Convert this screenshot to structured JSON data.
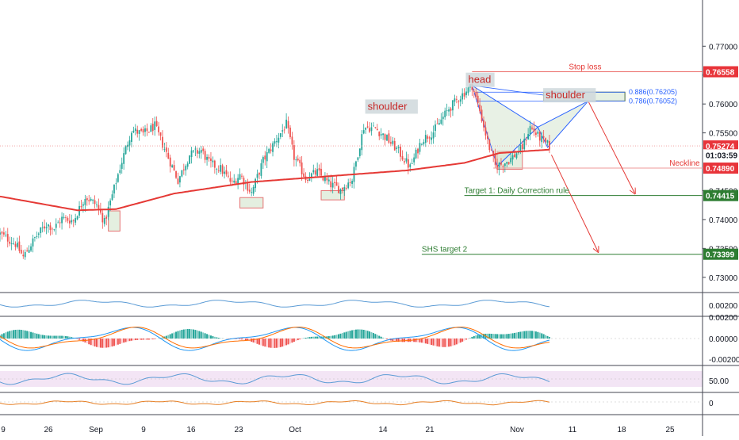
{
  "chart_data": {
    "type": "candlestick",
    "main_panel": {
      "ylim": [
        0.7275,
        0.778
      ],
      "y_ticks": [
        {
          "value": 0.77,
          "label": "0.77000"
        },
        {
          "value": 0.765,
          "label": ""
        },
        {
          "value": 0.76,
          "label": "0.76000"
        },
        {
          "value": 0.755,
          "label": "0.75500"
        },
        {
          "value": 0.745,
          "label": "0.74500"
        },
        {
          "value": 0.74,
          "label": "0.74000"
        },
        {
          "value": 0.735,
          "label": "0.73500"
        },
        {
          "value": 0.73,
          "label": "0.73000"
        }
      ],
      "price_labels": [
        {
          "name": "stop-loss-price",
          "value": 0.76558,
          "label": "0.76558",
          "bg": "#e8343a",
          "fg": "#ffffff"
        },
        {
          "name": "current-price",
          "value": 0.75274,
          "label": "0.75274",
          "bg": "#e8343a",
          "fg": "#ffffff"
        },
        {
          "name": "countdown",
          "value": 0.7512,
          "label": "01:03:59",
          "bg": "#ffffff",
          "fg": "#131722"
        },
        {
          "name": "neckline-price",
          "value": 0.7489,
          "label": "0.74890",
          "bg": "#e8343a",
          "fg": "#ffffff"
        },
        {
          "name": "target1-price",
          "value": 0.74415,
          "label": "0.74415",
          "bg": "#2e7d32",
          "fg": "#ffffff"
        },
        {
          "name": "target2-price",
          "value": 0.73399,
          "label": "0.73399",
          "bg": "#2e7d32",
          "fg": "#ffffff"
        }
      ],
      "annotations": {
        "head": "head",
        "left_shoulder": "shoulder",
        "right_shoulder": "shoulder",
        "stop_loss": "Stop loss",
        "neckline": "Neckline",
        "target1": "Target 1: Daily Correction rule",
        "target2": "SHS target 2",
        "fib_886": "0.886(0.76205)",
        "fib_786": "0.786(0.76052)"
      },
      "anchor_points": [
        [
          0,
          0.7375
        ],
        [
          8,
          0.7358
        ],
        [
          12,
          0.7335
        ],
        [
          18,
          0.7368
        ],
        [
          24,
          0.7392
        ],
        [
          28,
          0.7385
        ],
        [
          32,
          0.7402
        ],
        [
          38,
          0.7398
        ],
        [
          44,
          0.744
        ],
        [
          50,
          0.7425
        ],
        [
          54,
          0.7395
        ],
        [
          58,
          0.7442
        ],
        [
          62,
          0.749
        ],
        [
          68,
          0.7555
        ],
        [
          74,
          0.7548
        ],
        [
          80,
          0.7562
        ],
        [
          86,
          0.7515
        ],
        [
          92,
          0.7468
        ],
        [
          98,
          0.7512
        ],
        [
          104,
          0.752
        ],
        [
          108,
          0.7498
        ],
        [
          114,
          0.7488
        ],
        [
          120,
          0.7462
        ],
        [
          124,
          0.7478
        ],
        [
          130,
          0.7446
        ],
        [
          136,
          0.7502
        ],
        [
          142,
          0.7534
        ],
        [
          148,
          0.7565
        ],
        [
          152,
          0.7508
        ],
        [
          158,
          0.7472
        ],
        [
          164,
          0.7482
        ],
        [
          170,
          0.7462
        ],
        [
          176,
          0.7452
        ],
        [
          182,
          0.747
        ],
        [
          188,
          0.756
        ],
        [
          194,
          0.7558
        ],
        [
          200,
          0.754
        ],
        [
          206,
          0.7518
        ],
        [
          212,
          0.749
        ],
        [
          218,
          0.7538
        ],
        [
          224,
          0.7552
        ],
        [
          232,
          0.7592
        ],
        [
          240,
          0.762
        ],
        [
          244,
          0.7632
        ],
        [
          248,
          0.7588
        ],
        [
          252,
          0.7535
        ],
        [
          256,
          0.7492
        ],
        [
          260,
          0.7497
        ],
        [
          264,
          0.7505
        ],
        [
          270,
          0.7525
        ],
        [
          274,
          0.756
        ],
        [
          278,
          0.7545
        ],
        [
          282,
          0.7532
        ],
        [
          284,
          0.7527
        ]
      ],
      "ma200_anchor_points": [
        [
          0,
          0.744
        ],
        [
          40,
          0.7416
        ],
        [
          60,
          0.7418
        ],
        [
          90,
          0.7445
        ],
        [
          130,
          0.7465
        ],
        [
          170,
          0.7475
        ],
        [
          210,
          0.7485
        ],
        [
          240,
          0.7498
        ],
        [
          258,
          0.7515
        ],
        [
          270,
          0.7518
        ],
        [
          284,
          0.7521
        ]
      ]
    },
    "x_axis": {
      "tick_labels": [
        "9",
        "26",
        "Sep",
        "9",
        "16",
        "23",
        "Oct",
        "14",
        "21",
        "Nov",
        "11",
        "18",
        "25"
      ]
    },
    "sub_panels": [
      {
        "name": "oscillator-1",
        "ticks": [
          {
            "label": "0.00200"
          }
        ]
      },
      {
        "name": "macd",
        "ticks": [
          {
            "label": "0.00200"
          },
          {
            "label": "0.00000"
          },
          {
            "label": "-0.00200"
          }
        ]
      },
      {
        "name": "rsi",
        "ticks": [
          {
            "label": "50.00"
          }
        ]
      },
      {
        "name": "oscillator-3",
        "ticks": [
          {
            "label": "0"
          }
        ]
      }
    ]
  },
  "colors": {
    "up": "#26a69a",
    "down": "#ef5350",
    "ma200": "#e53935",
    "projection": "#e53935",
    "pattern_blue": "#2962ff",
    "target_green": "#2e7d32",
    "box_fill": "#d5e6d0",
    "box_stroke": "#e57373",
    "rsi_band": "#f3e5f5"
  }
}
